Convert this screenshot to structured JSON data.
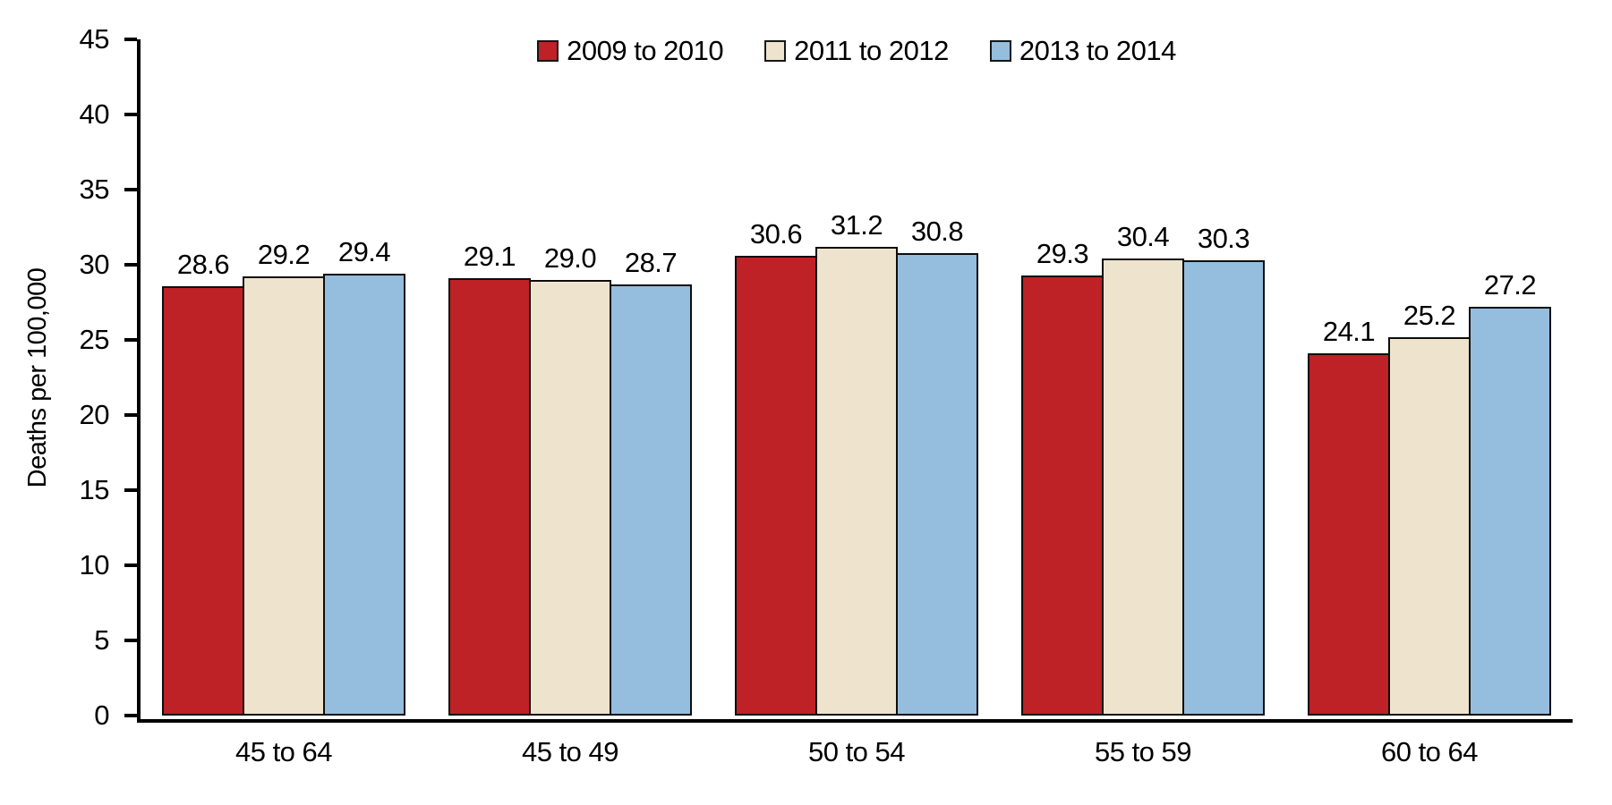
{
  "chart_data": {
    "type": "bar",
    "title": "",
    "xlabel": "",
    "ylabel": "Deaths per 100,000",
    "ylim": [
      0,
      45
    ],
    "yticks": [
      0,
      5,
      10,
      15,
      20,
      25,
      30,
      35,
      40,
      45
    ],
    "grid": false,
    "legend_position": "top-center",
    "bar_value_labels": true,
    "categories": [
      "45 to 64",
      "45 to 49",
      "50 to 54",
      "55 to 59",
      "60 to 64"
    ],
    "series": [
      {
        "name": "2009 to 2010",
        "color": "#be2126",
        "values": [
          28.6,
          29.1,
          30.6,
          29.3,
          24.1
        ]
      },
      {
        "name": "2011 to 2012",
        "color": "#eee4cd",
        "values": [
          29.2,
          29.0,
          31.2,
          30.4,
          25.2
        ]
      },
      {
        "name": "2013 to 2014",
        "color": "#95bdde",
        "values": [
          29.4,
          28.7,
          30.8,
          30.3,
          27.2
        ]
      }
    ]
  }
}
